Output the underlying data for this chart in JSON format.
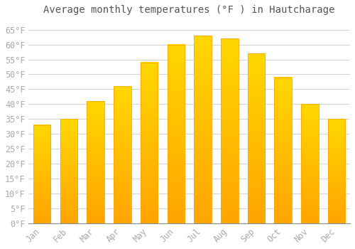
{
  "title": "Average monthly temperatures (°F ) in Hautcharage",
  "months": [
    "Jan",
    "Feb",
    "Mar",
    "Apr",
    "May",
    "Jun",
    "Jul",
    "Aug",
    "Sep",
    "Oct",
    "Nov",
    "Dec"
  ],
  "values": [
    33,
    35,
    41,
    46,
    54,
    60,
    63,
    62,
    57,
    49,
    40,
    35
  ],
  "bar_color_top": "#FFD700",
  "bar_color_bottom": "#FFA500",
  "background_color": "#FFFFFF",
  "grid_color": "#CCCCCC",
  "ylim": [
    0,
    68
  ],
  "yticks": [
    0,
    5,
    10,
    15,
    20,
    25,
    30,
    35,
    40,
    45,
    50,
    55,
    60,
    65
  ],
  "title_fontsize": 10,
  "tick_fontsize": 8.5,
  "tick_color": "#AAAAAA",
  "title_color": "#555555"
}
